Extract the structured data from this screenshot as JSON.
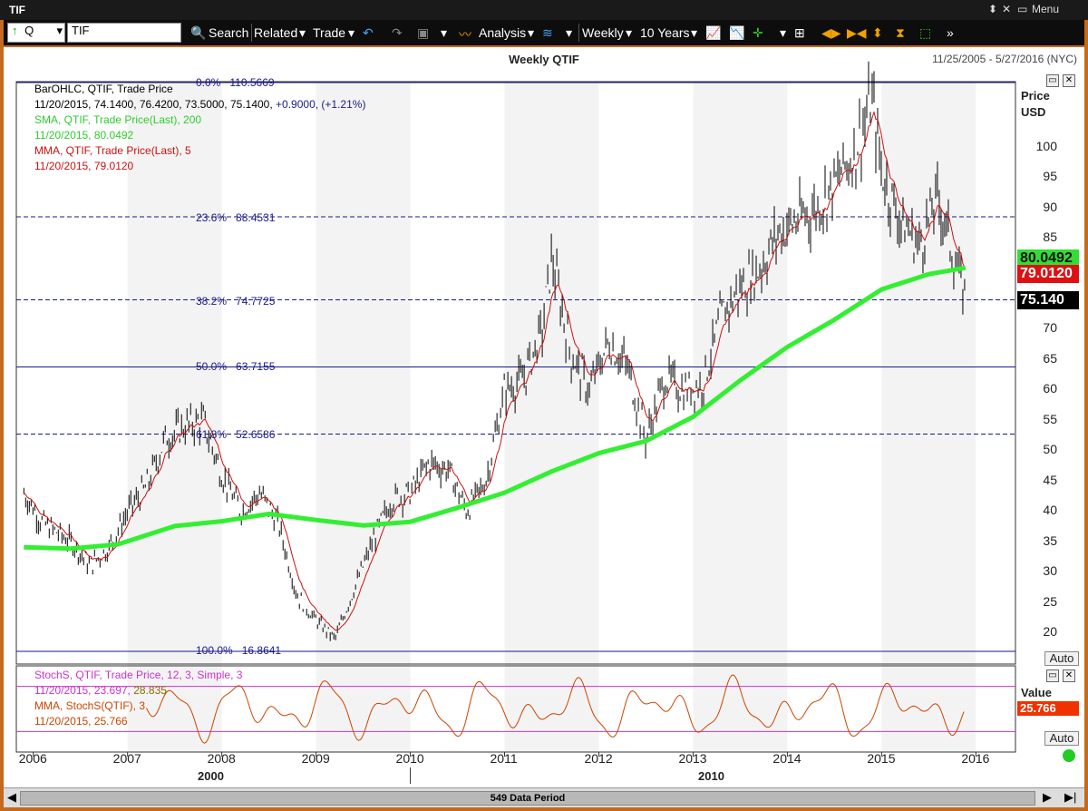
{
  "window": {
    "title": "TIF",
    "menu_label": "Menu"
  },
  "toolbar": {
    "direction_glyph": "↑",
    "symbol_prefix": "Q",
    "symbol_value": "TIF",
    "search_label": "Search",
    "related_label": "Related",
    "trade_label": "Trade",
    "analysis_label": "Analysis",
    "period_label": "Weekly",
    "range_label": "10 Years"
  },
  "header": {
    "title": "Weekly QTIF",
    "date_range": "11/25/2005 - 5/27/2016 (NYC)"
  },
  "legend": {
    "ohlc_line1": "BarOHLC, QTIF, Trade Price",
    "ohlc_values": "11/20/2015, 74.1400, 76.4200, 73.5000, 75.1400,",
    "ohlc_change": "+0.9000, (+1.21%)",
    "sma_line1": "SMA, QTIF, Trade Price(Last), 200",
    "sma_line2": "11/20/2015, 80.0492",
    "mma_line1": "MMA, QTIF, Trade Price(Last), 5",
    "mma_line2": "11/20/2015, 79.0120"
  },
  "fib_labels": [
    {
      "pct": "0.0%",
      "price": "110.5669"
    },
    {
      "pct": "23.6%",
      "price": "88.4531"
    },
    {
      "pct": "38.2%",
      "price": "74.7725"
    },
    {
      "pct": "50.0%",
      "price": "63.7155"
    },
    {
      "pct": "61.8%",
      "price": "52.6586"
    },
    {
      "pct": "100.0%",
      "price": "16.8641"
    }
  ],
  "y_axis": {
    "title_line1": "Price",
    "title_line2": "USD",
    "ticks": [
      "100",
      "95",
      "90",
      "85",
      "75",
      "70",
      "65",
      "60",
      "55",
      "50",
      "45",
      "40",
      "35",
      "30",
      "25",
      "20"
    ],
    "tags": {
      "sma": "80.0492",
      "mma": "79.0120",
      "last": "75.140"
    },
    "auto_label": "Auto"
  },
  "stoch": {
    "legend_line1": "StochS, QTIF, Trade Price, 12, 3, Simple, 3",
    "legend_line2_date": "11/20/2015, 23.697,",
    "legend_line2_val": "28.835",
    "legend_line3": "MMA, StochS(QTIF), 3",
    "legend_line4": "11/20/2015, 25.766",
    "axis_title": "Value",
    "value_tag": "25.766",
    "auto_label": "Auto"
  },
  "x_axis": {
    "years": [
      "2006",
      "2007",
      "2008",
      "2009",
      "2010",
      "2011",
      "2012",
      "2013",
      "2014",
      "2015",
      "2016"
    ],
    "eras": [
      "2000",
      "2010"
    ]
  },
  "scrollbar": {
    "label": "549 Data Period"
  },
  "colors": {
    "sma": "#33ee33",
    "mma": "#cc1111",
    "fib": "#1a1a8a",
    "bars": "#000000",
    "stoch": "#cc4400",
    "stoch_band": "#cc33cc"
  },
  "chart_data": {
    "type": "line",
    "title": "Weekly QTIF",
    "ylabel": "Price USD",
    "ylim": [
      16,
      110.5669
    ],
    "x_range": [
      "2005-11-25",
      "2016-05-27"
    ],
    "fib_levels": [
      {
        "pct": 0.0,
        "price": 110.5669
      },
      {
        "pct": 23.6,
        "price": 88.4531
      },
      {
        "pct": 38.2,
        "price": 74.7725
      },
      {
        "pct": 50.0,
        "price": 63.7155
      },
      {
        "pct": 61.8,
        "price": 52.6586
      },
      {
        "pct": 100.0,
        "price": 16.8641
      }
    ],
    "price_series": {
      "name": "BarOHLC",
      "x": [
        2005.9,
        2006.1,
        2006.4,
        2006.6,
        2006.8,
        2007.0,
        2007.2,
        2007.4,
        2007.6,
        2007.8,
        2008.0,
        2008.2,
        2008.4,
        2008.6,
        2008.8,
        2009.0,
        2009.2,
        2009.4,
        2009.6,
        2009.8,
        2010.0,
        2010.2,
        2010.4,
        2010.6,
        2010.8,
        2011.0,
        2011.2,
        2011.4,
        2011.5,
        2011.7,
        2011.9,
        2012.1,
        2012.3,
        2012.5,
        2012.7,
        2012.9,
        2013.1,
        2013.3,
        2013.5,
        2013.7,
        2013.9,
        2014.1,
        2014.3,
        2014.5,
        2014.7,
        2014.9,
        2015.0,
        2015.2,
        2015.4,
        2015.6,
        2015.8,
        2015.89
      ],
      "values": [
        43,
        38,
        35,
        31,
        34,
        40,
        44,
        52,
        54,
        55,
        46,
        40,
        43,
        38,
        26,
        22,
        19,
        27,
        35,
        42,
        43,
        48,
        47,
        40,
        45,
        60,
        62,
        70,
        82,
        66,
        60,
        68,
        64,
        52,
        62,
        60,
        61,
        72,
        77,
        80,
        86,
        88,
        90,
        94,
        99,
        108,
        96,
        88,
        84,
        92,
        80,
        75.14
      ]
    },
    "sma_200": {
      "name": "SMA 200",
      "x": [
        2005.9,
        2006.4,
        2006.9,
        2007.5,
        2008.0,
        2008.5,
        2009.0,
        2009.5,
        2010.0,
        2010.5,
        2011.0,
        2011.5,
        2012.0,
        2012.5,
        2013.0,
        2013.5,
        2014.0,
        2014.5,
        2015.0,
        2015.5,
        2015.89
      ],
      "values": [
        34,
        33.8,
        34.5,
        37.5,
        38.3,
        39.5,
        38.5,
        37.6,
        38.2,
        40.5,
        43,
        46.5,
        49.5,
        51.5,
        55.5,
        61.5,
        67,
        71.5,
        76.5,
        79,
        80.05
      ]
    },
    "stochastic": {
      "name": "StochS",
      "values_last": [
        23.697,
        28.835,
        25.766
      ]
    }
  }
}
